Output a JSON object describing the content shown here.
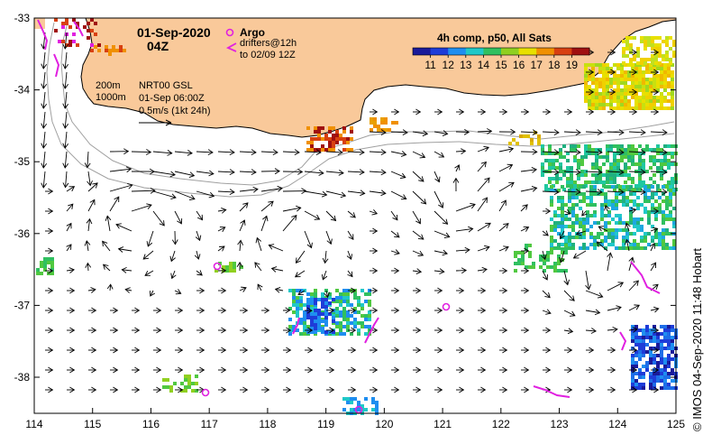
{
  "title": {
    "date": "01-Sep-2020",
    "time": "04Z"
  },
  "legend_argo": {
    "argo_label": "Argo",
    "drifters_label": "drifters@12h",
    "drifters_range": "to 02/09 12Z"
  },
  "legend_depth": {
    "contour1": "200m",
    "contour2": "1000m"
  },
  "legend_currents": {
    "product": "NRT00 GSL",
    "datetime": "01-Sep 06:00Z",
    "scale": "0.5m/s (1kt 24h)"
  },
  "colorbar": {
    "title": "4h comp, p50, All Sats",
    "ticks": [
      "11",
      "12",
      "13",
      "14",
      "15",
      "16",
      "17",
      "18",
      "19"
    ],
    "colors": [
      "#1a1a9a",
      "#1e3cd8",
      "#1e8ef0",
      "#20c8c8",
      "#30c060",
      "#90d020",
      "#e8e000",
      "#f09000",
      "#d84010",
      "#a01010"
    ]
  },
  "axes": {
    "x_ticks": [
      "114",
      "115",
      "116",
      "117",
      "118",
      "119",
      "120",
      "121",
      "122",
      "123",
      "124",
      "125"
    ],
    "y_ticks": [
      "-33",
      "-34",
      "-35",
      "-36",
      "-37",
      "-38"
    ]
  },
  "credit": "© IMOS 04-Sep-2020 11:48 Hobart",
  "colors": {
    "land": "#f9c99a",
    "coast": "#000000",
    "argo": "#e020e0",
    "drifter": "#e020e0",
    "contour": "#a0a0a0",
    "arrow": "#000000"
  }
}
